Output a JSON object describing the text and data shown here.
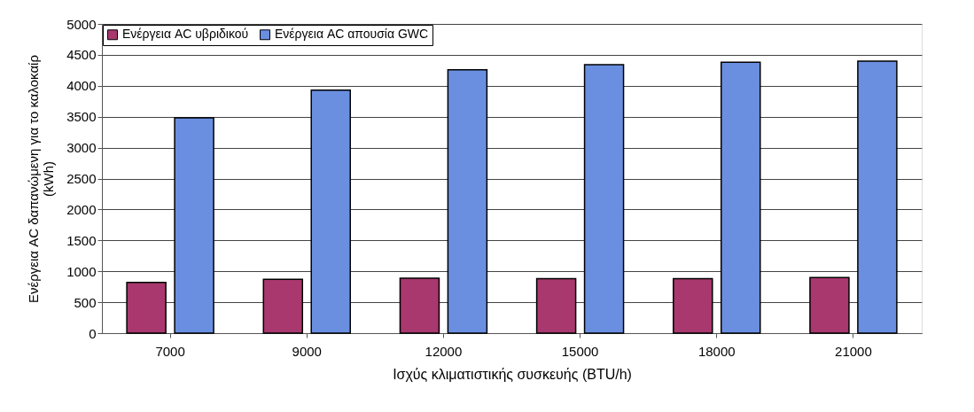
{
  "chart_data": {
    "type": "bar",
    "xlabel": "Ισχύς κλιματιστικής συσκευής (BTU/h)",
    "ylabel": "Ενέργεια AC δαπανώμενη για το καλοκαίρ (kWh)",
    "categories": [
      "7000",
      "9000",
      "12000",
      "15000",
      "18000",
      "21000"
    ],
    "series": [
      {
        "name": "Ενέργεια AC υβριδικού",
        "color": "#a8386e",
        "values": [
          820,
          870,
          890,
          880,
          880,
          900
        ]
      },
      {
        "name": "Ενέργεια AC απουσία GWC",
        "color": "#6a8fe0",
        "values": [
          3480,
          3930,
          4260,
          4340,
          4380,
          4400
        ]
      }
    ],
    "ylim": [
      0,
      5000
    ],
    "yticks": [
      0,
      500,
      1000,
      1500,
      2000,
      2500,
      3000,
      3500,
      4000,
      4500,
      5000
    ],
    "grid": "y",
    "legend": "top left"
  }
}
